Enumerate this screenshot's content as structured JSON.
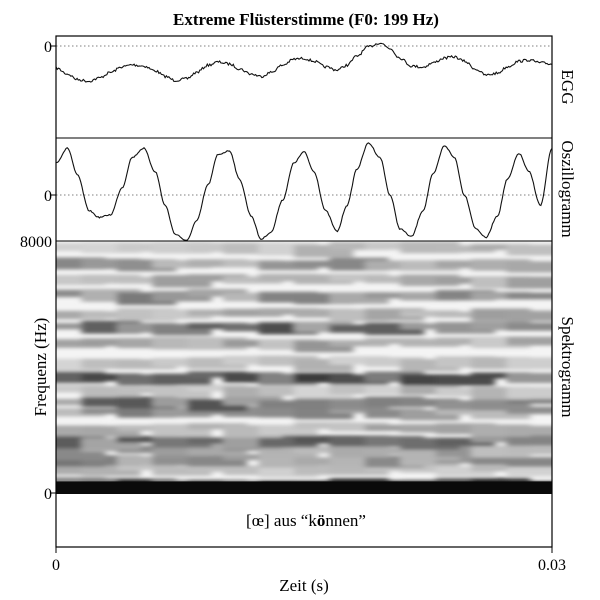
{
  "chart_data": {
    "type": "line",
    "title": "Extreme Flüsterstimme (F0: 199 Hz)",
    "xlabel": "Zeit (s)",
    "x_ticks": [
      "0",
      "0.03"
    ],
    "xlim": [
      0,
      0.03
    ],
    "panels": [
      {
        "label": "EGG",
        "kind": "line",
        "y_ticks": [
          "0"
        ],
        "reference_line": 0,
        "series": [
          {
            "x": [
              0,
              0.0007,
              0.0013,
              0.002,
              0.0026,
              0.0033,
              0.004,
              0.0046,
              0.0053,
              0.006,
              0.0066,
              0.0072,
              0.0079,
              0.0085,
              0.0092,
              0.0098,
              0.0105,
              0.0111,
              0.0118,
              0.0124,
              0.013,
              0.0137,
              0.0144,
              0.015,
              0.0156,
              0.0163,
              0.017,
              0.0176,
              0.0182,
              0.0189,
              0.0196,
              0.0202,
              0.0208,
              0.0215,
              0.0222,
              0.0228,
              0.0235,
              0.0241,
              0.0247,
              0.0254,
              0.026,
              0.0267,
              0.0273,
              0.028,
              0.0286,
              0.0293,
              0.03
            ],
            "y": [
              -0.55,
              -0.7,
              -0.84,
              -0.88,
              -0.8,
              -0.66,
              -0.52,
              -0.47,
              -0.5,
              -0.62,
              -0.76,
              -0.86,
              -0.82,
              -0.66,
              -0.48,
              -0.4,
              -0.45,
              -0.57,
              -0.7,
              -0.76,
              -0.66,
              -0.48,
              -0.33,
              -0.31,
              -0.38,
              -0.52,
              -0.6,
              -0.48,
              -0.25,
              -0.02,
              0.08,
              -0.06,
              -0.3,
              -0.5,
              -0.53,
              -0.42,
              -0.3,
              -0.27,
              -0.38,
              -0.58,
              -0.73,
              -0.68,
              -0.52,
              -0.38,
              -0.35,
              -0.42,
              -0.45
            ]
          }
        ]
      },
      {
        "label": "Oszillogramm",
        "kind": "line",
        "y_ticks": [
          "0"
        ],
        "reference_line": 0,
        "series": [
          {
            "x": [
              0,
              0.0007,
              0.0013,
              0.002,
              0.0026,
              0.0033,
              0.004,
              0.0046,
              0.0053,
              0.006,
              0.0066,
              0.0072,
              0.0079,
              0.0085,
              0.0092,
              0.0098,
              0.0105,
              0.0111,
              0.0118,
              0.0124,
              0.013,
              0.0137,
              0.0144,
              0.015,
              0.0156,
              0.0163,
              0.017,
              0.0176,
              0.0182,
              0.0189,
              0.0196,
              0.0202,
              0.0208,
              0.0215,
              0.0222,
              0.0228,
              0.0235,
              0.0241,
              0.0247,
              0.0254,
              0.026,
              0.0267,
              0.0273,
              0.028,
              0.0286,
              0.0293,
              0.03
            ],
            "y": [
              0.62,
              0.9,
              0.38,
              -0.3,
              -0.43,
              -0.38,
              0.14,
              0.72,
              0.9,
              0.45,
              -0.2,
              -0.75,
              -0.88,
              -0.5,
              0.2,
              0.78,
              0.85,
              0.3,
              -0.4,
              -0.85,
              -0.72,
              -0.1,
              0.62,
              0.83,
              0.45,
              -0.3,
              -0.7,
              -0.2,
              0.5,
              1.0,
              0.72,
              0.0,
              -0.65,
              -0.8,
              -0.3,
              0.4,
              0.95,
              0.72,
              0.0,
              -0.65,
              -0.82,
              -0.4,
              0.3,
              0.8,
              0.45,
              -0.2,
              0.9
            ]
          }
        ]
      },
      {
        "label": "Spektrogramm",
        "kind": "heatmap",
        "ylabel": "Frequenz (Hz)",
        "y_ticks": [
          "8000",
          "0"
        ],
        "ylim": [
          0,
          8000
        ],
        "freq_bands_hz": [
          250,
          720,
          1000,
          1300,
          1600,
          2000,
          2500,
          2800,
          3200,
          3600,
          4100,
          4700,
          5200,
          5600,
          6200,
          6700,
          7200,
          7700
        ],
        "band_darkness": [
          0.95,
          0.3,
          0.55,
          0.45,
          0.7,
          0.35,
          0.5,
          0.65,
          0.3,
          0.75,
          0.3,
          0.4,
          0.7,
          0.35,
          0.55,
          0.4,
          0.45,
          0.3
        ]
      }
    ],
    "annotation_prefix": "[œ] aus “k",
    "annotation_bold": "ö",
    "annotation_suffix": "nnen”",
    "grid": false
  }
}
